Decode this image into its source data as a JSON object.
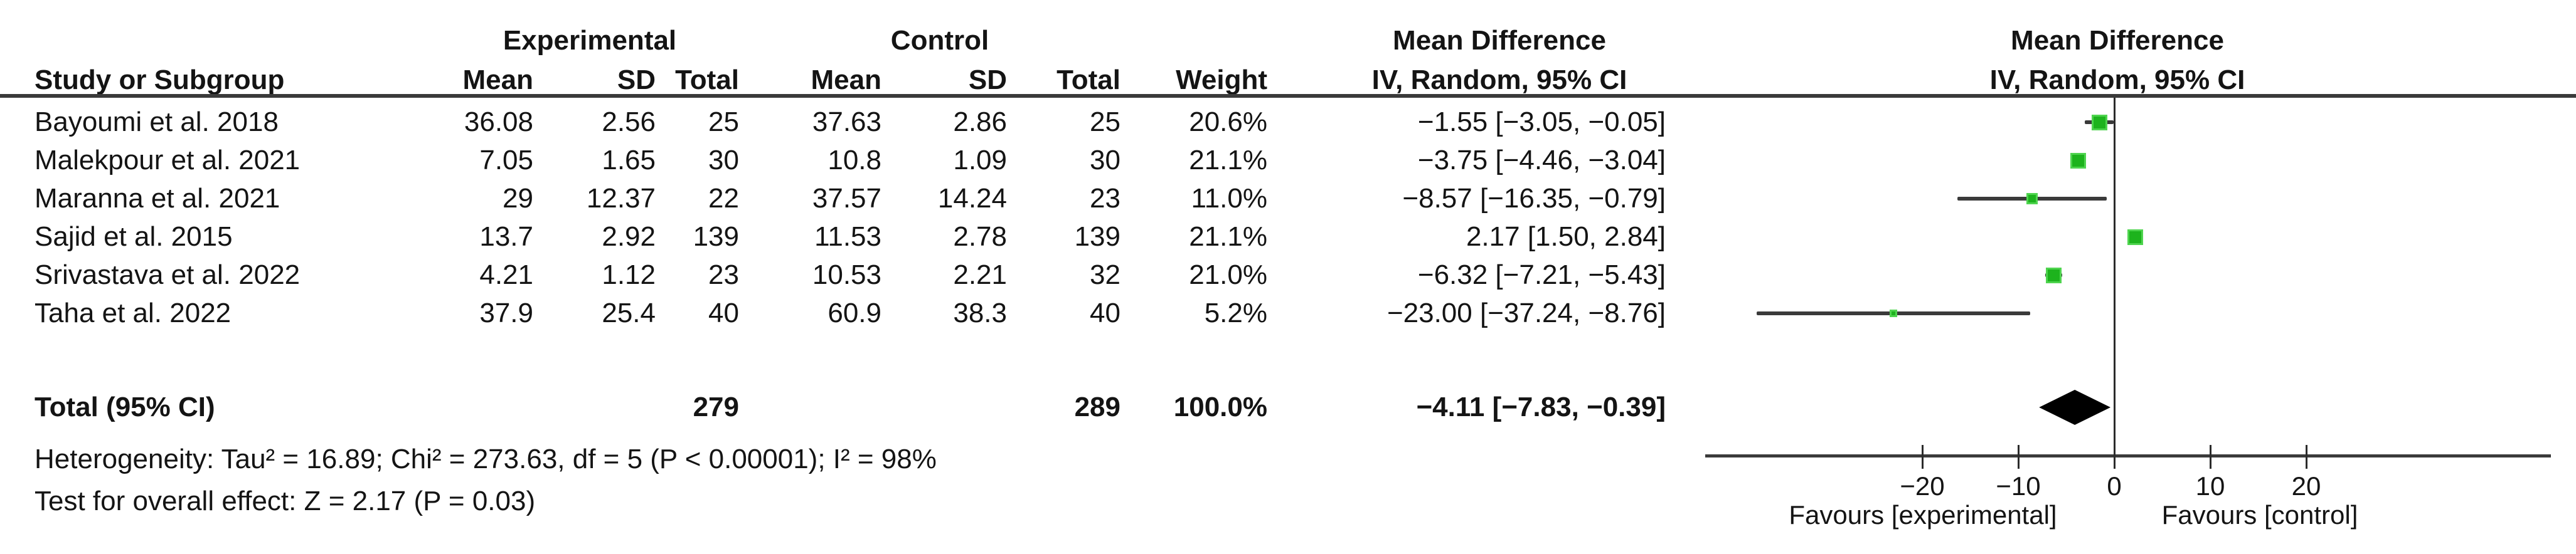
{
  "table": {
    "group_headers": {
      "experimental": "Experimental",
      "control": "Control",
      "md_text_col": "Mean Difference",
      "md_plot_col": "Mean Difference"
    },
    "column_headers": {
      "study": "Study or Subgroup",
      "mean_e": "Mean",
      "sd_e": "SD",
      "total_e": "Total",
      "mean_c": "Mean",
      "sd_c": "SD",
      "total_c": "Total",
      "weight": "Weight",
      "iv_text_col": "IV, Random, 95% CI",
      "iv_plot_col": "IV, Random, 95% CI"
    },
    "rows": [
      {
        "study": "Bayoumi et al. 2018",
        "mean_e": "36.08",
        "sd_e": "2.56",
        "total_e": "25",
        "mean_c": "37.63",
        "sd_c": "2.86",
        "total_c": "25",
        "weight": "20.6%",
        "ci_text": "−1.55 [−3.05, −0.05]"
      },
      {
        "study": "Malekpour et al. 2021",
        "mean_e": "7.05",
        "sd_e": "1.65",
        "total_e": "30",
        "mean_c": "10.8",
        "sd_c": "1.09",
        "total_c": "30",
        "weight": "21.1%",
        "ci_text": "−3.75 [−4.46, −3.04]"
      },
      {
        "study": "Maranna et al. 2021",
        "mean_e": "29",
        "sd_e": "12.37",
        "total_e": "22",
        "mean_c": "37.57",
        "sd_c": "14.24",
        "total_c": "23",
        "weight": "11.0%",
        "ci_text": "−8.57 [−16.35, −0.79]"
      },
      {
        "study": "Sajid et al. 2015",
        "mean_e": "13.7",
        "sd_e": "2.92",
        "total_e": "139",
        "mean_c": "11.53",
        "sd_c": "2.78",
        "total_c": "139",
        "weight": "21.1%",
        "ci_text": "2.17 [1.50, 2.84]"
      },
      {
        "study": "Srivastava et al. 2022",
        "mean_e": "4.21",
        "sd_e": "1.12",
        "total_e": "23",
        "mean_c": "10.53",
        "sd_c": "2.21",
        "total_c": "32",
        "weight": "21.0%",
        "ci_text": "−6.32 [−7.21, −5.43]"
      },
      {
        "study": "Taha et al. 2022",
        "mean_e": "37.9",
        "sd_e": "25.4",
        "total_e": "40",
        "mean_c": "60.9",
        "sd_c": "38.3",
        "total_c": "40",
        "weight": "5.2%",
        "ci_text": "−23.00 [−37.24, −8.76]"
      }
    ],
    "total_row": {
      "label": "Total (95% CI)",
      "total_e": "279",
      "total_c": "289",
      "weight": "100.0%",
      "ci_text": "−4.11 [−7.83, −0.39]"
    },
    "heterogeneity": "Heterogeneity: Tau² = 16.89; Chi² = 273.63, df = 5 (P < 0.00001); I² = 98%",
    "overall_effect": "Test for overall effect: Z = 2.17 (P = 0.03)"
  },
  "chart_data": {
    "type": "forest",
    "effect_measure": "Mean Difference",
    "model": "IV, Random, 95% CI",
    "studies": [
      {
        "name": "Bayoumi et al. 2018",
        "md": -1.55,
        "ci": [
          -3.05,
          -0.05
        ],
        "weight_pct": 20.6
      },
      {
        "name": "Malekpour et al. 2021",
        "md": -3.75,
        "ci": [
          -4.46,
          -3.04
        ],
        "weight_pct": 21.1
      },
      {
        "name": "Maranna et al. 2021",
        "md": -8.57,
        "ci": [
          -16.35,
          -0.79
        ],
        "weight_pct": 11.0
      },
      {
        "name": "Sajid et al. 2015",
        "md": 2.17,
        "ci": [
          1.5,
          2.84
        ],
        "weight_pct": 21.1
      },
      {
        "name": "Srivastava et al. 2022",
        "md": -6.32,
        "ci": [
          -7.21,
          -5.43
        ],
        "weight_pct": 21.0
      },
      {
        "name": "Taha et al. 2022",
        "md": -23.0,
        "ci": [
          -37.24,
          -8.76
        ],
        "weight_pct": 5.2
      }
    ],
    "total": {
      "md": -4.11,
      "ci": [
        -7.83,
        -0.39
      ],
      "n_experimental": 279,
      "n_control": 289,
      "weight_pct": 100.0
    },
    "axis": {
      "ticks": [
        -20,
        -10,
        0,
        10,
        20
      ],
      "tick_labels": [
        "−20",
        "−10",
        "0",
        "10",
        "20"
      ],
      "zero_reference": 0
    },
    "favours_left": "Favours [experimental]",
    "favours_right": "Favours [control]",
    "marker_color": "#1db31d",
    "marker_edge_color": "#4fd44f",
    "line_color": "#3a3a3a",
    "diamond_color": "#000000"
  }
}
